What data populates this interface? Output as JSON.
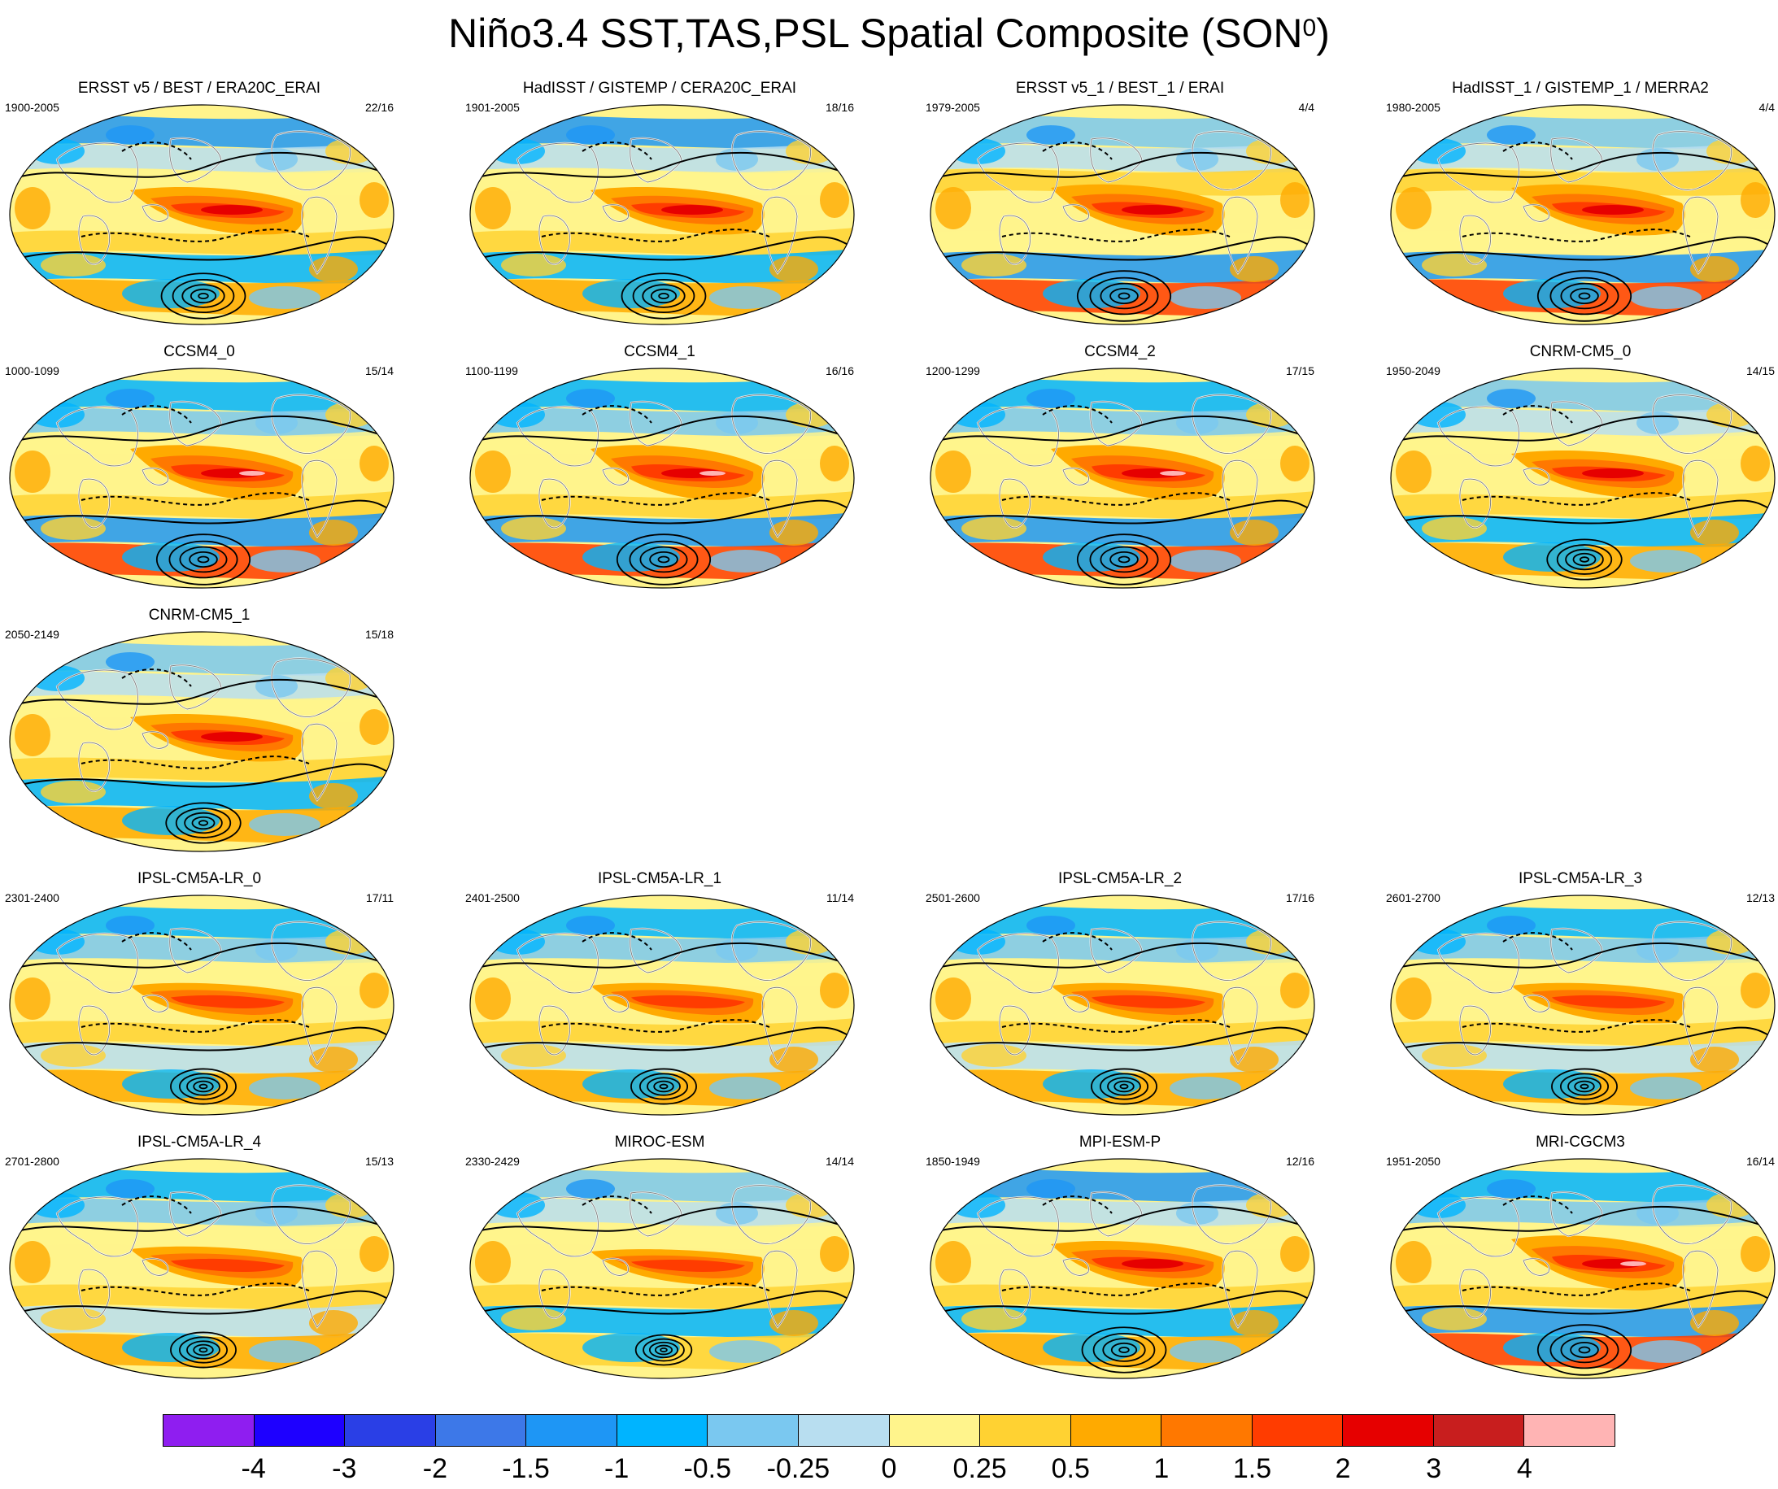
{
  "figure": {
    "title_main": "Niño3.4 SST,TAS,PSL Spatial Composite (SON",
    "title_sup": "0",
    "title_end": ")"
  },
  "panels": [
    {
      "title": "ERSST v5 / BEST / ERA20C_ERAI",
      "years": "1900-2005",
      "count": "22/16",
      "col": 0,
      "row": 0,
      "pattern": "obs"
    },
    {
      "title": "HadISST / GISTEMP / CERA20C_ERAI",
      "years": "1901-2005",
      "count": "18/16",
      "col": 1,
      "row": 0,
      "pattern": "obs"
    },
    {
      "title": "ERSST v5_1 / BEST_1 / ERAI",
      "years": "1979-2005",
      "count": "4/4",
      "col": 2,
      "row": 0,
      "pattern": "obs-strong"
    },
    {
      "title": "HadISST_1 / GISTEMP_1 / MERRA2",
      "years": "1980-2005",
      "count": "4/4",
      "col": 3,
      "row": 0,
      "pattern": "obs-strong"
    },
    {
      "title": "CCSM4_0",
      "years": "1000-1099",
      "count": "15/14",
      "col": 0,
      "row": 1,
      "pattern": "ccsm"
    },
    {
      "title": "CCSM4_1",
      "years": "1100-1199",
      "count": "16/16",
      "col": 1,
      "row": 1,
      "pattern": "ccsm"
    },
    {
      "title": "CCSM4_2",
      "years": "1200-1299",
      "count": "17/15",
      "col": 2,
      "row": 1,
      "pattern": "ccsm"
    },
    {
      "title": "CNRM-CM5_0",
      "years": "1950-2049",
      "count": "14/15",
      "col": 3,
      "row": 1,
      "pattern": "cnrm"
    },
    {
      "title": "CNRM-CM5_1",
      "years": "2050-2149",
      "count": "15/18",
      "col": 0,
      "row": 2,
      "pattern": "cnrm"
    },
    {
      "title": "IPSL-CM5A-LR_0",
      "years": "2301-2400",
      "count": "17/11",
      "col": 0,
      "row": 3,
      "pattern": "ipsl"
    },
    {
      "title": "IPSL-CM5A-LR_1",
      "years": "2401-2500",
      "count": "11/14",
      "col": 1,
      "row": 3,
      "pattern": "ipsl"
    },
    {
      "title": "IPSL-CM5A-LR_2",
      "years": "2501-2600",
      "count": "17/16",
      "col": 2,
      "row": 3,
      "pattern": "ipsl"
    },
    {
      "title": "IPSL-CM5A-LR_3",
      "years": "2601-2700",
      "count": "12/13",
      "col": 3,
      "row": 3,
      "pattern": "ipsl"
    },
    {
      "title": "IPSL-CM5A-LR_4",
      "years": "2701-2800",
      "count": "15/13",
      "col": 0,
      "row": 4,
      "pattern": "ipsl"
    },
    {
      "title": "MIROC-ESM",
      "years": "2330-2429",
      "count": "14/14",
      "col": 1,
      "row": 4,
      "pattern": "weak"
    },
    {
      "title": "MPI-ESM-P",
      "years": "1850-1949",
      "count": "12/16",
      "col": 2,
      "row": 4,
      "pattern": "obs"
    },
    {
      "title": "MRI-CGCM3",
      "years": "1951-2050",
      "count": "16/14",
      "col": 3,
      "row": 4,
      "pattern": "ccsm"
    }
  ],
  "colorbar": {
    "colors": [
      "#8f1ef0",
      "#1e00ff",
      "#2a3fe6",
      "#3d78e8",
      "#1e96f5",
      "#00b4ff",
      "#7ac8f0",
      "#b8def0",
      "#fff48c",
      "#ffd232",
      "#ffaa00",
      "#ff7800",
      "#ff3c00",
      "#e60000",
      "#c81e1e",
      "#ffb4b4"
    ],
    "labels": [
      "-4",
      "-3",
      "-2",
      "-1.5",
      "-1",
      "-0.5",
      "-0.25",
      "0",
      "0.25",
      "0.5",
      "1",
      "1.5",
      "2",
      "3",
      "4"
    ]
  }
}
